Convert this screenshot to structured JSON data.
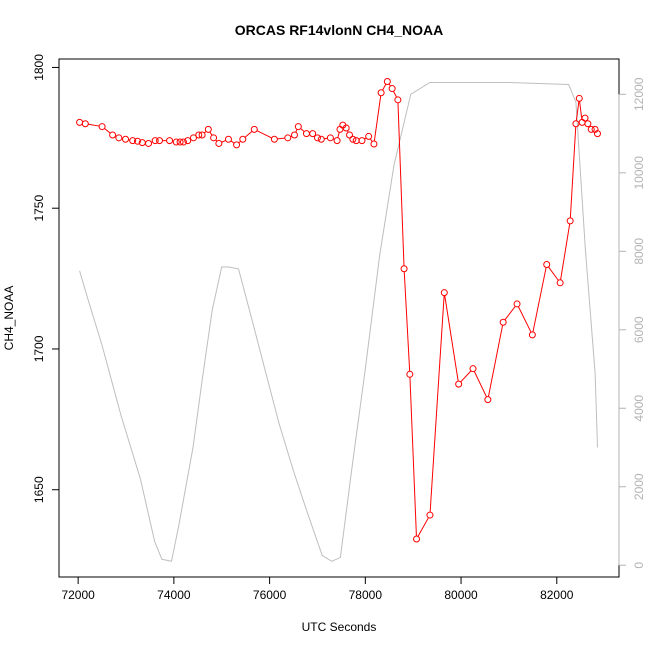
{
  "chart_data": {
    "type": "line",
    "title": "ORCAS RF14vlonN CH4_NOAA",
    "xlabel": "UTC Seconds",
    "ylabel": "CH4_NOAA",
    "xlim": [
      71600,
      83300
    ],
    "ylim": [
      1619,
      1803
    ],
    "y2lim": [
      -300,
      12900
    ],
    "x_ticks": [
      72000,
      74000,
      76000,
      78000,
      80000,
      82000
    ],
    "y_ticks": [
      1650,
      1700,
      1750,
      1800
    ],
    "y2_ticks": [
      0,
      2000,
      4000,
      6000,
      8000,
      10000,
      12000
    ],
    "grid": false,
    "legend": "none",
    "colors": {
      "ch4": "#ff0000",
      "altitude": "#bebebe",
      "right_axis": "#b3b3b3"
    },
    "series": [
      {
        "axis": "left",
        "style": "line-with-open-circles",
        "x": [
          72030,
          72150,
          72500,
          72720,
          72850,
          72990,
          73140,
          73240,
          73340,
          73470,
          73610,
          73700,
          73910,
          74050,
          74130,
          74200,
          74290,
          74410,
          74520,
          74590,
          74720,
          74830,
          74940,
          75140,
          75310,
          75440,
          75680,
          76100,
          76380,
          76520,
          76600,
          76770,
          76900,
          77000,
          77080,
          77270,
          77410,
          77470,
          77530,
          77600,
          77670,
          77740,
          77810,
          77930,
          78070,
          78180,
          78330,
          78460,
          78560,
          78680,
          78810,
          78930,
          79070,
          79350,
          79650,
          79950,
          80250,
          80560,
          80880,
          81170,
          81490,
          81790,
          82070,
          82280,
          82400,
          82470,
          82530,
          82590,
          82650,
          82720,
          82800,
          82850
        ],
        "y": [
          1780.5,
          1780,
          1779,
          1776,
          1775,
          1774.5,
          1774,
          1773.8,
          1773.3,
          1773,
          1774,
          1774,
          1774,
          1773.5,
          1773.5,
          1773.5,
          1774,
          1775,
          1776,
          1776,
          1778,
          1775,
          1773,
          1774.5,
          1772.5,
          1774.5,
          1778,
          1774.5,
          1775,
          1776,
          1779,
          1776.5,
          1776.5,
          1775,
          1774.5,
          1775,
          1774,
          1778,
          1779.5,
          1778.5,
          1776,
          1774.5,
          1774,
          1774,
          1775.5,
          1772.8,
          1791,
          1795,
          1792.5,
          1788.5,
          1728.5,
          1691,
          1632.5,
          1641,
          1720,
          1687.5,
          1693,
          1682,
          1709.5,
          1716,
          1705,
          1730,
          1723.5,
          1745.5,
          1780,
          1789,
          1780.5,
          1782,
          1780,
          1778,
          1778,
          1776.5
        ]
      },
      {
        "axis": "right",
        "style": "line",
        "x": [
          72030,
          72200,
          72500,
          72900,
          73300,
          73600,
          73750,
          73950,
          74100,
          74400,
          74600,
          74800,
          75000,
          75150,
          75350,
          75600,
          75900,
          76200,
          76500,
          76800,
          77100,
          77300,
          77480,
          77700,
          78000,
          78300,
          78600,
          78950,
          79350,
          80000,
          81000,
          82250,
          82400,
          82600,
          82800,
          82850
        ],
        "y": [
          7500,
          6800,
          5600,
          3800,
          2200,
          600,
          150,
          100,
          1000,
          3000,
          4800,
          6500,
          7600,
          7600,
          7550,
          6400,
          5000,
          3600,
          2400,
          1300,
          250,
          100,
          200,
          2300,
          5000,
          7900,
          10200,
          12000,
          12300,
          12300,
          12300,
          12250,
          11800,
          8000,
          4900,
          3000
        ]
      }
    ]
  }
}
